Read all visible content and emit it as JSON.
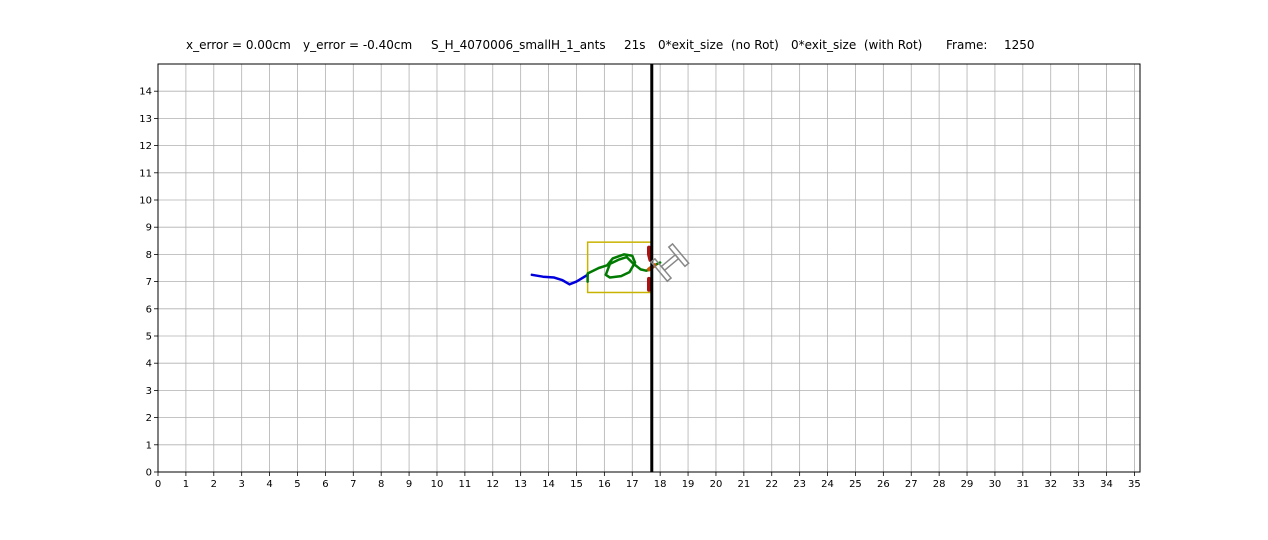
{
  "header": {
    "x_error": "x_error = 0.00cm",
    "y_error": "y_error = -0.40cm",
    "name": "S_H_4070006_smallH_1_ants",
    "time": "21s",
    "no_rot": "0*exit_size  (no Rot)",
    "with_rot": "0*exit_size  (with Rot)",
    "frame_label": "Frame:",
    "frame_value": "1250"
  },
  "chart_data": {
    "type": "line",
    "title": "",
    "xlabel": "",
    "ylabel": "",
    "xlim": [
      0,
      35.2
    ],
    "ylim": [
      0,
      15
    ],
    "grid": true,
    "xticks": [
      0,
      1,
      2,
      3,
      4,
      5,
      6,
      7,
      8,
      9,
      10,
      11,
      12,
      13,
      14,
      15,
      16,
      17,
      18,
      19,
      20,
      21,
      22,
      23,
      24,
      25,
      26,
      27,
      28,
      29,
      30,
      31,
      32,
      33,
      34,
      35
    ],
    "yticks": [
      0,
      1,
      2,
      3,
      4,
      5,
      6,
      7,
      8,
      9,
      10,
      11,
      12,
      13,
      14
    ],
    "colors": {
      "blue_path": "#0000dd",
      "green_path": "#007a00",
      "red_marks": "#aa1111",
      "orange_marks": "#cc5500",
      "box": "#c8b400",
      "wall": "#000000",
      "load": "#888888",
      "grid": "#b0b0b0"
    },
    "series": [
      {
        "color": "blue",
        "points": [
          [
            13.4,
            7.25
          ],
          [
            13.8,
            7.18
          ],
          [
            14.2,
            7.15
          ],
          [
            14.5,
            7.05
          ],
          [
            14.75,
            6.9
          ],
          [
            15.0,
            7.0
          ],
          [
            15.4,
            7.25
          ]
        ]
      },
      {
        "color": "green",
        "points": [
          [
            15.4,
            7.0
          ],
          [
            15.4,
            7.3
          ],
          [
            15.8,
            7.5
          ],
          [
            16.1,
            7.6
          ],
          [
            16.3,
            7.85
          ],
          [
            16.7,
            8.0
          ],
          [
            17.0,
            7.95
          ],
          [
            17.1,
            7.7
          ],
          [
            16.9,
            7.35
          ],
          [
            16.6,
            7.2
          ],
          [
            16.2,
            7.15
          ],
          [
            16.05,
            7.25
          ],
          [
            16.2,
            7.65
          ],
          [
            16.5,
            7.8
          ],
          [
            16.8,
            7.9
          ],
          [
            17.05,
            7.65
          ],
          [
            17.3,
            7.45
          ],
          [
            17.5,
            7.4
          ],
          [
            17.65,
            7.45
          ],
          [
            17.8,
            7.6
          ],
          [
            18.0,
            7.7
          ]
        ]
      }
    ],
    "marks": [
      {
        "color": "red",
        "points": [
          [
            17.6,
            8.25
          ],
          [
            17.6,
            8.0
          ],
          [
            17.65,
            7.8
          ]
        ]
      },
      {
        "color": "red",
        "points": [
          [
            17.6,
            7.1
          ],
          [
            17.6,
            6.85
          ],
          [
            17.6,
            6.7
          ]
        ]
      },
      {
        "color": "orange",
        "points": [
          [
            17.6,
            7.45
          ],
          [
            17.8,
            7.6
          ]
        ]
      }
    ],
    "wall_x": 17.7,
    "box": {
      "x0": 15.4,
      "x1": 17.7,
      "y0": 6.6,
      "y1": 8.45
    },
    "load": {
      "center": [
        18.35,
        7.7
      ],
      "angle_deg": 40,
      "half_span": 0.5
    }
  }
}
